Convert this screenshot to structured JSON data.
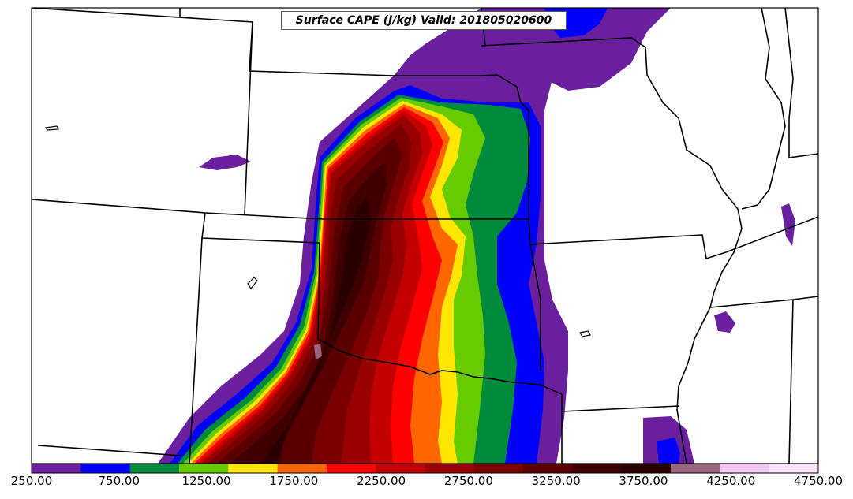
{
  "map": {
    "title": "Surface CAPE (J/kg) Valid: 201805020600"
  },
  "colorbar": {
    "tick_labels": [
      "250.00",
      "750.00",
      "1250.00",
      "1750.00",
      "2250.00",
      "2750.00",
      "3250.00",
      "3750.00",
      "4250.00",
      "4750.00"
    ],
    "colors": [
      "#6a1f9e",
      "#0000ff",
      "#008b3c",
      "#66cc00",
      "#ffe600",
      "#ff6600",
      "#ff0000",
      "#c40000",
      "#9a0000",
      "#7a0000",
      "#5a0000",
      "#3e0000",
      "#2b0000",
      "#996680",
      "#f2c6f2",
      "#fbe3fb"
    ]
  }
}
